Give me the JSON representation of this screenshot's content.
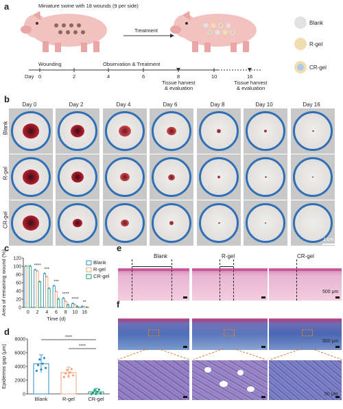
{
  "panels": {
    "a": "a",
    "b": "b",
    "c": "c",
    "d": "d",
    "e": "e",
    "f": "f"
  },
  "panel_a": {
    "swine_caption": "Miniature swine with 18 wounds (9 per side)",
    "treatment": "Treatment",
    "legend": [
      {
        "label": "Blank",
        "color": "#e2e2e2",
        "inner": "#e2e2e2"
      },
      {
        "label": "R-gel",
        "color": "#f2ddb0",
        "inner": "#f2ddb0"
      },
      {
        "label": "CR-gel",
        "color": "#f2ddb0",
        "inner": "#a9cde6"
      }
    ],
    "timeline": {
      "day_label": "Day",
      "wounding": "Wounding",
      "observation": "Observation & Treatment",
      "ticks": [
        "0",
        "2",
        "4",
        "6",
        "8",
        "10",
        "16"
      ],
      "harvest1": "Tissue harvest",
      "harvest1b": "& evaluation",
      "harvest2": "Tissue harvest",
      "harvest2b": "& evaluation"
    }
  },
  "panel_b": {
    "days": [
      "Day 0",
      "Day 2",
      "Day 4",
      "Day 6",
      "Day 8",
      "Day 10",
      "Day 16"
    ],
    "rows": [
      "Blank",
      "R-gel",
      "CR-gel"
    ],
    "scale": "1 cm"
  },
  "chart_data": [
    {
      "type": "bar",
      "panel": "c",
      "categories": [
        "0",
        "2",
        "4",
        "6",
        "8",
        "10",
        "16"
      ],
      "series": [
        {
          "name": "Blank",
          "color": "#2a8cc4",
          "values": [
            100,
            91,
            82,
            52,
            22,
            9,
            2
          ]
        },
        {
          "name": "R-gel",
          "color": "#f0a07a",
          "values": [
            100,
            88,
            74,
            38,
            14,
            6,
            1
          ]
        },
        {
          "name": "CR-gel",
          "color": "#1a9a7a",
          "values": [
            100,
            62,
            46,
            20,
            6,
            2,
            0
          ]
        }
      ],
      "significance": [
        "***",
        "****",
        "***",
        "***",
        "****",
        "****",
        "**"
      ],
      "xlabel": "Time (d)",
      "ylabel": "Area of remaining wound (%)",
      "yticks": [
        "0",
        "20",
        "40",
        "60",
        "80",
        "100",
        "120"
      ],
      "ylim": [
        0,
        120
      ]
    },
    {
      "type": "bar",
      "panel": "d",
      "categories": [
        "Blank",
        "R-gel",
        "CR-gel"
      ],
      "values": [
        4400,
        3100,
        300
      ],
      "errors": [
        1300,
        800,
        500
      ],
      "colors": [
        "#2a8cc4",
        "#f0a07a",
        "#1a9a7a"
      ],
      "significance": [
        "****",
        "****"
      ],
      "ylabel": "Epidermis gap (μm)",
      "yticks": [
        "0",
        "2000",
        "4000",
        "6000",
        "8000"
      ],
      "ylim": [
        0,
        8000
      ]
    }
  ],
  "panel_e": {
    "titles": [
      "Blank",
      "R-gel",
      "CR-gel"
    ],
    "scale": "500 μm"
  },
  "panel_f": {
    "scale_top": "500 μm",
    "scale_bottom": "50 μm"
  }
}
